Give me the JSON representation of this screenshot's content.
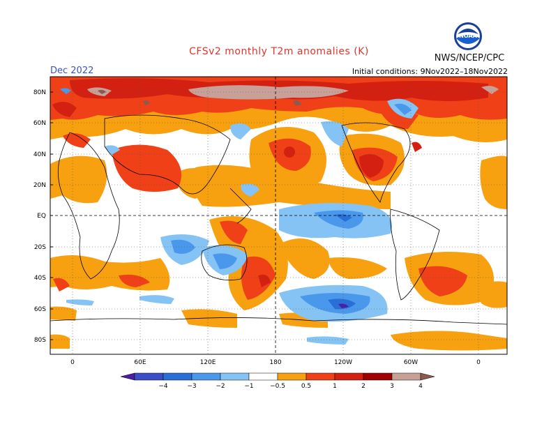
{
  "title": "CFSv2 monthly T2m anomalies (K)",
  "period": "Dec 2022",
  "initial_conditions": "Initial conditions: 9Nov2022–18Nov2022",
  "organization": "NWS/NCEP/CPC",
  "logo_text": "NOAA",
  "latitude_labels": [
    "80N",
    "60N",
    "40N",
    "20N",
    "EQ",
    "20S",
    "40S",
    "60S",
    "80S"
  ],
  "longitude_labels": [
    "0",
    "60E",
    "120E",
    "180",
    "120W",
    "60W",
    "0"
  ],
  "colorbar": {
    "labels": [
      "−4",
      "−3",
      "−2",
      "−1",
      "−0.5",
      "0.5",
      "1",
      "2",
      "3",
      "4"
    ],
    "colors": [
      "#4a1fa6",
      "#3a4ec8",
      "#2a6fd8",
      "#4a98ec",
      "#86c3f5",
      "#ffffff",
      "#f7a010",
      "#ef4018",
      "#d42010",
      "#a00000",
      "#c8a098",
      "#8c5a50"
    ]
  },
  "palette": {
    "warm_0_5": "#f7a010",
    "warm_1": "#ef4018",
    "warm_2": "#d42010",
    "warm_3": "#a00000",
    "warm_4": "#c8a098",
    "cool_0_5": "#86c3f5",
    "cool_1": "#4a98ec",
    "cool_2": "#2a6fd8",
    "cool_3": "#3a4ec8"
  }
}
